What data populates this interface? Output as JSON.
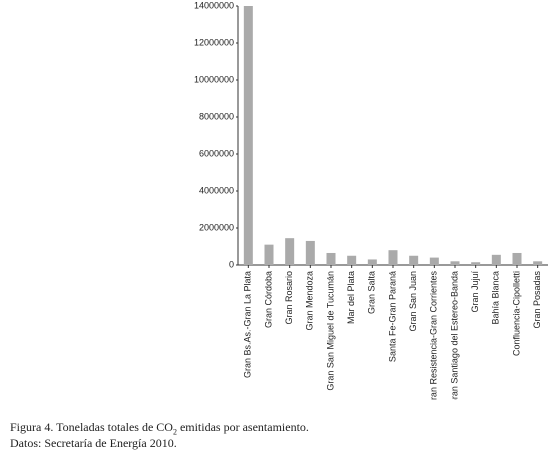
{
  "chart_data": {
    "type": "bar",
    "categories": [
      "Gran Bs.As.-Gran La Plata",
      "Gran Córdoba",
      "Gran Rosario",
      "Gran Mendoza",
      "Gran San Miguel de Tucumán",
      "Mar del Plata",
      "Gran Salta",
      "Santa Fe-Gran Paraná",
      "Gran San Juan",
      "Gran Resistencia-Gran Corrientes",
      "Gran Santiago del Estereo-Banda",
      "Gran Jujuí",
      "Bahía Blanca",
      "Confluencia-Cipolletti",
      "Gran Posadas"
    ],
    "values": [
      14000000,
      1100000,
      1450000,
      1300000,
      650000,
      500000,
      300000,
      800000,
      500000,
      400000,
      200000,
      150000,
      550000,
      650000,
      200000
    ],
    "color": "#aaaaaa",
    "ylim": [
      0,
      14000000
    ],
    "yticks": [
      0,
      2000000,
      4000000,
      6000000,
      8000000,
      10000000,
      12000000,
      14000000
    ],
    "grid": false
  },
  "caption": {
    "label": "Figura 4.",
    "text_before": "Toneladas totales de CO",
    "subscript": "2",
    "text_after": "emitidas por asentamiento.",
    "source": "Datos: Secretaría de Energía 2010."
  }
}
